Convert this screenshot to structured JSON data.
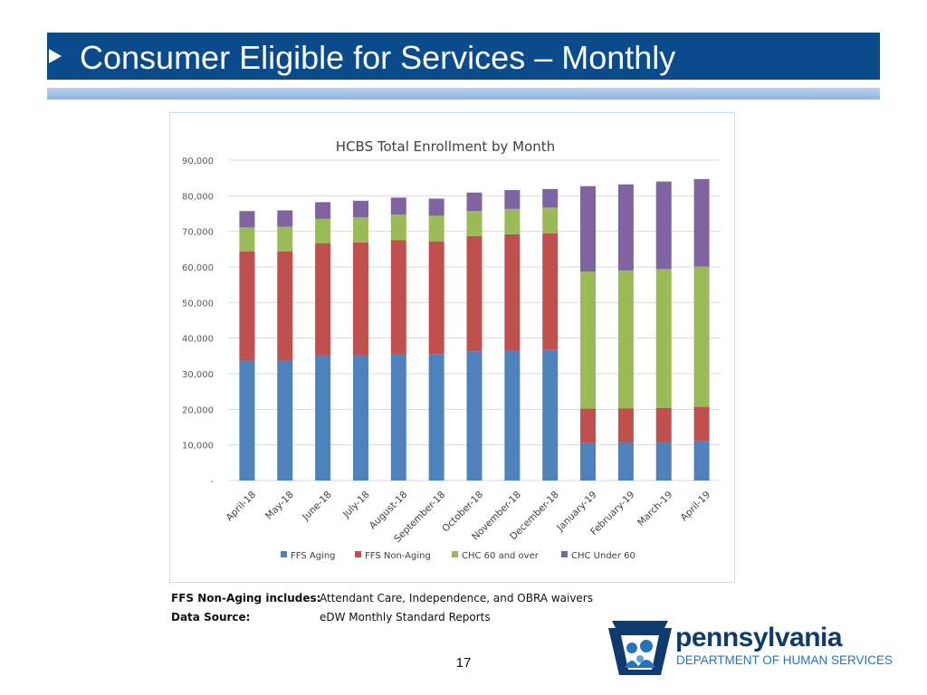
{
  "slide": {
    "title": "Consumer Eligible for Services – Monthly",
    "page_number": "17"
  },
  "notes": [
    {
      "label": "FFS Non-Aging includes:",
      "value": "Attendant Care, Independence, and OBRA waivers"
    },
    {
      "label": "Data Source:",
      "value": "eDW Monthly Standard Reports"
    }
  ],
  "logo": {
    "wordmark": "pennsylvania",
    "department": "DEPARTMENT OF HUMAN SERVICES"
  },
  "colors": {
    "title_bar": "#0b4a8b",
    "ffs_aging": "#4f81bd",
    "ffs_non_aging": "#c0504d",
    "chc_60_over": "#9bbb59",
    "chc_under_60": "#8064a2"
  },
  "chart_data": {
    "type": "bar",
    "stacked": true,
    "title": "HCBS Total Enrollment by Month",
    "categories": [
      "April-18",
      "May-18",
      "June-18",
      "July-18",
      "August-18",
      "September-18",
      "October-18",
      "November-18",
      "December-18",
      "January-19",
      "February-19",
      "March-19",
      "April-19"
    ],
    "series": [
      {
        "name": "FFS Aging",
        "color": "#4f81bd",
        "values": [
          33700,
          33700,
          35200,
          35200,
          35600,
          35400,
          36300,
          36600,
          36700,
          10700,
          10800,
          10800,
          11000
        ]
      },
      {
        "name": "FFS Non-Aging",
        "color": "#c0504d",
        "values": [
          30700,
          30700,
          31500,
          31700,
          31900,
          31800,
          32400,
          32600,
          32700,
          9500,
          9500,
          9600,
          9700
        ]
      },
      {
        "name": "CHC 60 and over",
        "color": "#9bbb59",
        "values": [
          6700,
          6900,
          6800,
          7000,
          7200,
          7200,
          7000,
          7100,
          7300,
          38500,
          38700,
          39000,
          39400
        ]
      },
      {
        "name": "CHC Under 60",
        "color": "#8064a2",
        "values": [
          4600,
          4600,
          4700,
          4700,
          4800,
          4800,
          5200,
          5300,
          5200,
          24000,
          24200,
          24600,
          24600
        ]
      }
    ],
    "yticks": [
      "-",
      "10,000",
      "20,000",
      "30,000",
      "40,000",
      "50,000",
      "60,000",
      "70,000",
      "80,000",
      "90,000"
    ],
    "ylim": [
      0,
      90000
    ],
    "grid": true,
    "legend_position": "bottom"
  }
}
